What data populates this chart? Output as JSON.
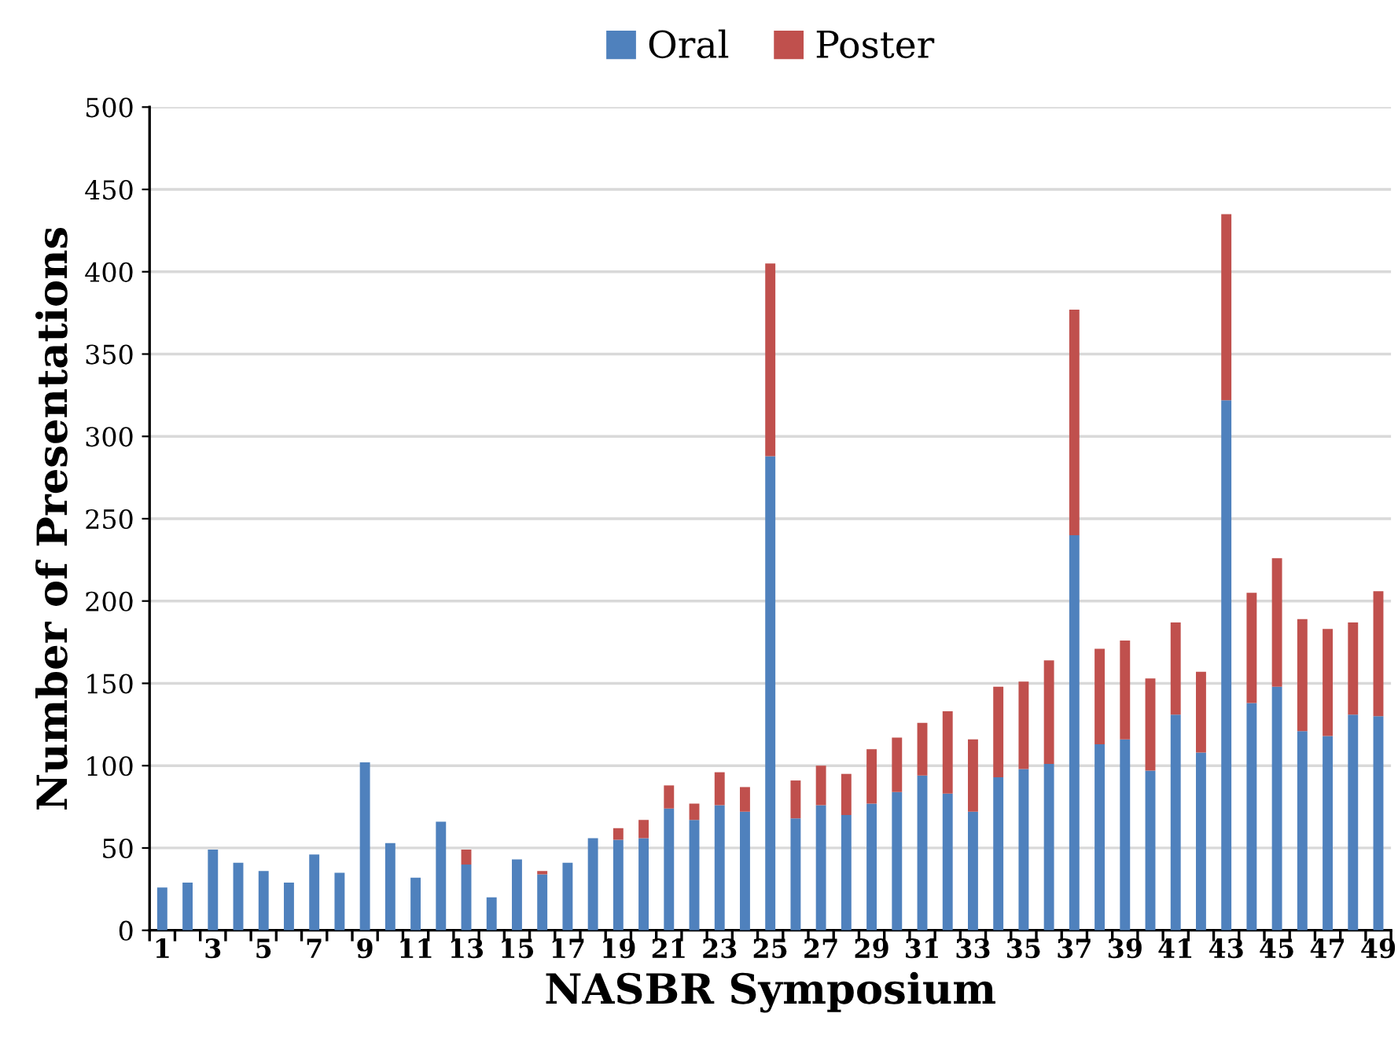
{
  "chart_data": {
    "type": "bar",
    "stacked": true,
    "xlabel": "NASBR Symposium",
    "ylabel": "Number of Presentations",
    "categories": [
      "1",
      null,
      "3",
      null,
      "5",
      null,
      "7",
      null,
      "9",
      null,
      "11",
      null,
      "13",
      null,
      "15",
      null,
      "17",
      null,
      "19",
      null,
      "21",
      null,
      "23",
      null,
      "25",
      null,
      "27",
      null,
      "29",
      null,
      "31",
      null,
      "33",
      null,
      "35",
      null,
      "37",
      null,
      "39",
      null,
      "41",
      null,
      "43",
      null,
      "45",
      null,
      "47",
      null,
      "49"
    ],
    "series": [
      {
        "name": "Oral",
        "color": "#4f81bd",
        "values": [
          26,
          29,
          49,
          41,
          36,
          29,
          46,
          35,
          102,
          53,
          32,
          66,
          40,
          20,
          43,
          34,
          41,
          56,
          55,
          56,
          74,
          67,
          76,
          72,
          288,
          68,
          76,
          70,
          77,
          84,
          94,
          83,
          72,
          93,
          98,
          101,
          240,
          113,
          116,
          97,
          131,
          108,
          322,
          138,
          148,
          121,
          118,
          131,
          130
        ]
      },
      {
        "name": "Poster",
        "color": "#c0504d",
        "values": [
          0,
          0,
          0,
          0,
          0,
          0,
          0,
          0,
          0,
          0,
          0,
          0,
          9,
          0,
          0,
          2,
          0,
          0,
          7,
          11,
          14,
          10,
          20,
          15,
          117,
          23,
          24,
          25,
          33,
          33,
          32,
          50,
          44,
          55,
          53,
          63,
          137,
          58,
          60,
          56,
          56,
          49,
          113,
          67,
          78,
          68,
          65,
          56,
          76
        ]
      }
    ],
    "ylim": [
      0,
      500
    ],
    "yticks": [
      0,
      50,
      100,
      150,
      200,
      250,
      300,
      350,
      400,
      450,
      500
    ],
    "grid": "y",
    "legend": "top"
  }
}
